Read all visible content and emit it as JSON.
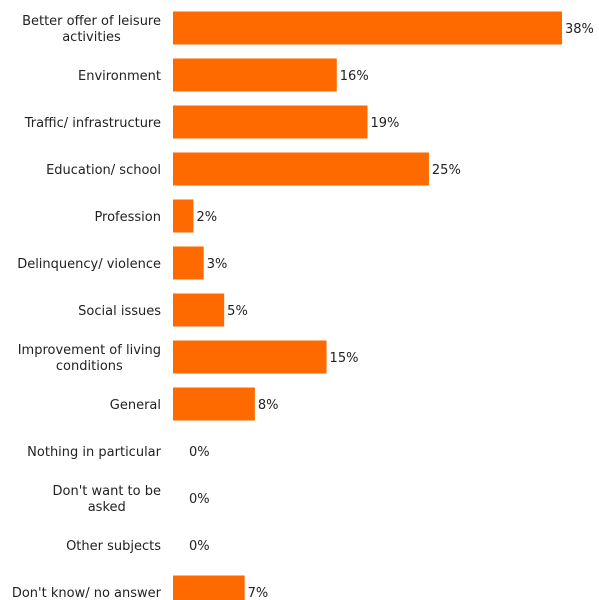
{
  "chart_data": {
    "type": "bar",
    "orientation": "horizontal",
    "categories": [
      "Better offer of leisure activities",
      "Environment",
      "Traffic/ infrastructure",
      "Education/ school",
      "Profession",
      "Delinquency/ violence",
      "Social issues",
      "Improvement of living conditions",
      "General",
      "Nothing in particular",
      "Don't want to be asked",
      "Other subjects",
      "Don't know/ no answer"
    ],
    "values": [
      38,
      16,
      19,
      25,
      2,
      3,
      5,
      15,
      8,
      0,
      0,
      0,
      7
    ],
    "value_labels": [
      "38%",
      "16%",
      "19%",
      "25%",
      "2%",
      "3%",
      "5%",
      "15%",
      "8%",
      "0%",
      "0%",
      "0%",
      "7%"
    ],
    "bar_color": "#ff6a00",
    "grid": false,
    "legend": "none",
    "xlim": [
      0,
      38
    ]
  }
}
